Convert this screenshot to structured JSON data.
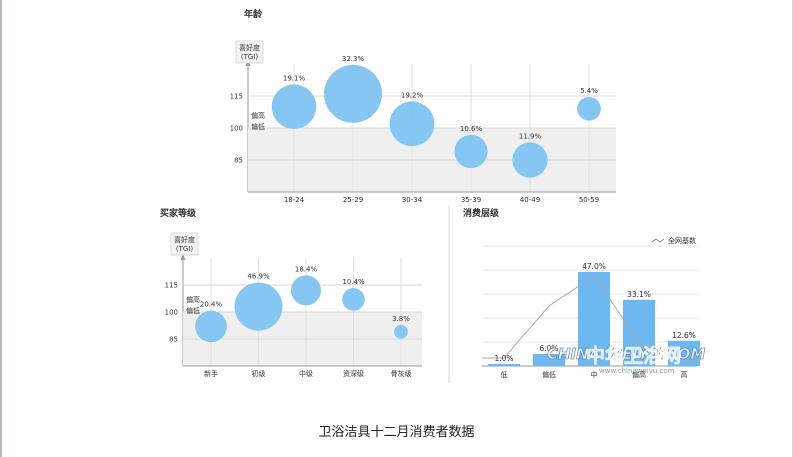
{
  "caption": "卫浴洁具十二月消费者数据",
  "watermark": {
    "cn": "中华卫浴网",
    "en": "CHINA WEIYU.COM",
    "url": "www.chinaweiyu.com"
  },
  "colors": {
    "bubble": "#7ec3f2",
    "bar": "#6db8f0",
    "band": "#efefef",
    "line": "#aaaaaa"
  },
  "chart_data": [
    {
      "type": "scatter",
      "title": "年龄",
      "ylabel": [
        "喜好度",
        "(TGI)"
      ],
      "band_labels": [
        "偏高",
        "偏低"
      ],
      "yticks": [
        115,
        100,
        85
      ],
      "ylim": [
        70,
        130
      ],
      "categories": [
        "18-24",
        "25-29",
        "30-34",
        "35-39",
        "40-49",
        "50-59"
      ],
      "values": [
        110,
        116,
        102,
        89,
        85,
        109
      ],
      "shares": [
        19.1,
        32.3,
        19.2,
        10.6,
        11.9,
        5.4
      ],
      "share_labels": [
        "19.1%",
        "32.3%",
        "19.2%",
        "10.6%",
        "11.9%",
        "5.4%"
      ]
    },
    {
      "type": "scatter",
      "title": "买家等级",
      "ylabel": [
        "喜好度",
        "(TGI)"
      ],
      "band_labels": [
        "偏高",
        "偏低"
      ],
      "yticks": [
        115,
        100,
        85
      ],
      "ylim": [
        70,
        130
      ],
      "categories": [
        "新手",
        "初级",
        "中级",
        "资深级",
        "骨灰级"
      ],
      "values": [
        92,
        103,
        112,
        107,
        89
      ],
      "shares": [
        20.4,
        46.9,
        18.4,
        10.4,
        3.8
      ],
      "share_labels": [
        "20.4%",
        "46.9%",
        "18.4%",
        "10.4%",
        "3.8%"
      ]
    },
    {
      "type": "bar",
      "title": "消费层级",
      "legend": "全网基数",
      "categories": [
        "低",
        "偏低",
        "中",
        "偏高",
        "高"
      ],
      "values": [
        1.0,
        6.0,
        47.0,
        33.1,
        12.6
      ],
      "value_labels": [
        "1.0%",
        "6.0%",
        "47.0%",
        "33.1%",
        "12.6%"
      ],
      "baseline": [
        4,
        30,
        45,
        12,
        3
      ],
      "ylim": [
        0,
        60
      ]
    }
  ]
}
